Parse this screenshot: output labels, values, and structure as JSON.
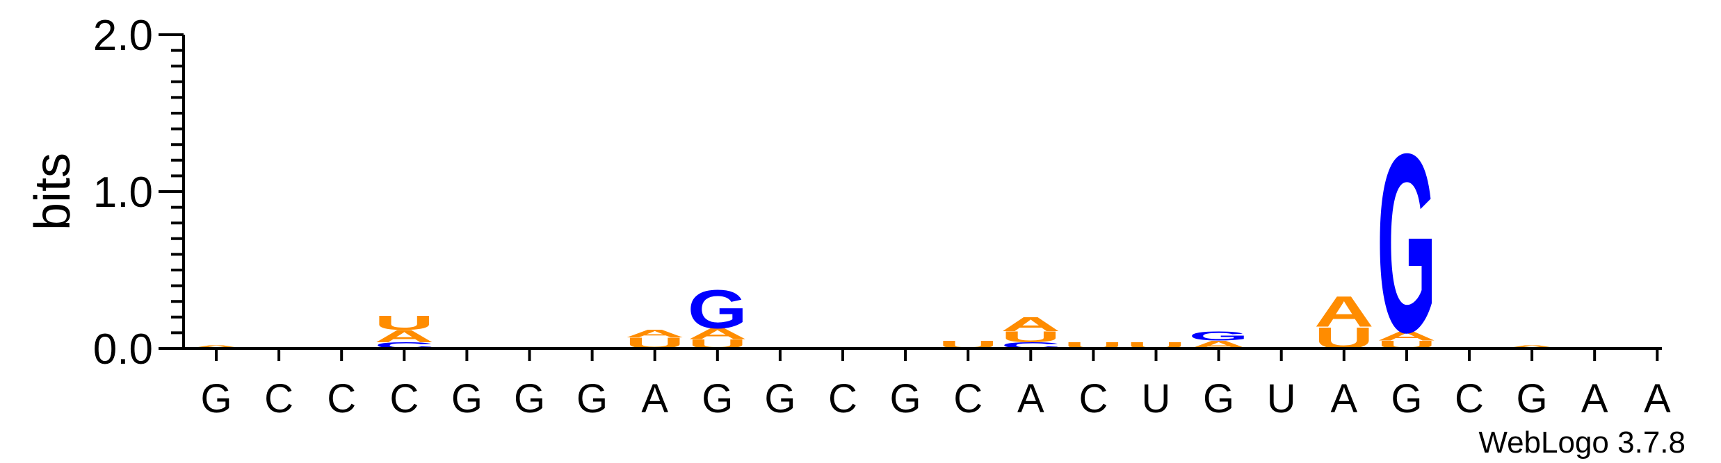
{
  "chart_data": {
    "type": "sequence-logo",
    "ylabel": "bits",
    "ylim": [
      0,
      2.0
    ],
    "yticks": [
      "0.0",
      "1.0",
      "2.0"
    ],
    "credit": "WebLogo 3.7.8",
    "colors": {
      "A": "#ff8c00",
      "U": "#ff8c00",
      "G": "#0000ff",
      "C": "#0000ff"
    },
    "positions": [
      {
        "label": "G",
        "stack": [
          {
            "letter": "A",
            "bits": 0.02
          }
        ]
      },
      {
        "label": "C",
        "stack": []
      },
      {
        "label": "C",
        "stack": []
      },
      {
        "label": "C",
        "stack": [
          {
            "letter": "C",
            "bits": 0.04
          },
          {
            "letter": "A",
            "bits": 0.08
          },
          {
            "letter": "U",
            "bits": 0.09
          }
        ]
      },
      {
        "label": "G",
        "stack": []
      },
      {
        "label": "G",
        "stack": []
      },
      {
        "label": "G",
        "stack": []
      },
      {
        "label": "A",
        "stack": [
          {
            "letter": "U",
            "bits": 0.07
          },
          {
            "letter": "A",
            "bits": 0.05
          }
        ]
      },
      {
        "label": "G",
        "stack": [
          {
            "letter": "U",
            "bits": 0.06
          },
          {
            "letter": "A",
            "bits": 0.07
          },
          {
            "letter": "G",
            "bits": 0.25
          }
        ]
      },
      {
        "label": "G",
        "stack": []
      },
      {
        "label": "C",
        "stack": []
      },
      {
        "label": "G",
        "stack": []
      },
      {
        "label": "C",
        "stack": [
          {
            "letter": "U",
            "bits": 0.05
          }
        ]
      },
      {
        "label": "A",
        "stack": [
          {
            "letter": "C",
            "bits": 0.04
          },
          {
            "letter": "U",
            "bits": 0.07
          },
          {
            "letter": "A",
            "bits": 0.09
          }
        ]
      },
      {
        "label": "C",
        "stack": [
          {
            "letter": "U",
            "bits": 0.04
          }
        ]
      },
      {
        "label": "U",
        "stack": [
          {
            "letter": "U",
            "bits": 0.04
          }
        ]
      },
      {
        "label": "G",
        "stack": [
          {
            "letter": "A",
            "bits": 0.05
          },
          {
            "letter": "G",
            "bits": 0.06
          }
        ]
      },
      {
        "label": "U",
        "stack": []
      },
      {
        "label": "A",
        "stack": [
          {
            "letter": "U",
            "bits": 0.14
          },
          {
            "letter": "A",
            "bits": 0.2
          }
        ]
      },
      {
        "label": "G",
        "stack": [
          {
            "letter": "U",
            "bits": 0.05
          },
          {
            "letter": "A",
            "bits": 0.06
          },
          {
            "letter": "G",
            "bits": 1.17
          }
        ]
      },
      {
        "label": "C",
        "stack": []
      },
      {
        "label": "G",
        "stack": [
          {
            "letter": "A",
            "bits": 0.02
          }
        ]
      },
      {
        "label": "A",
        "stack": [
          {
            "letter": "A",
            "bits": 0.01
          }
        ]
      },
      {
        "label": "A",
        "stack": []
      }
    ]
  }
}
